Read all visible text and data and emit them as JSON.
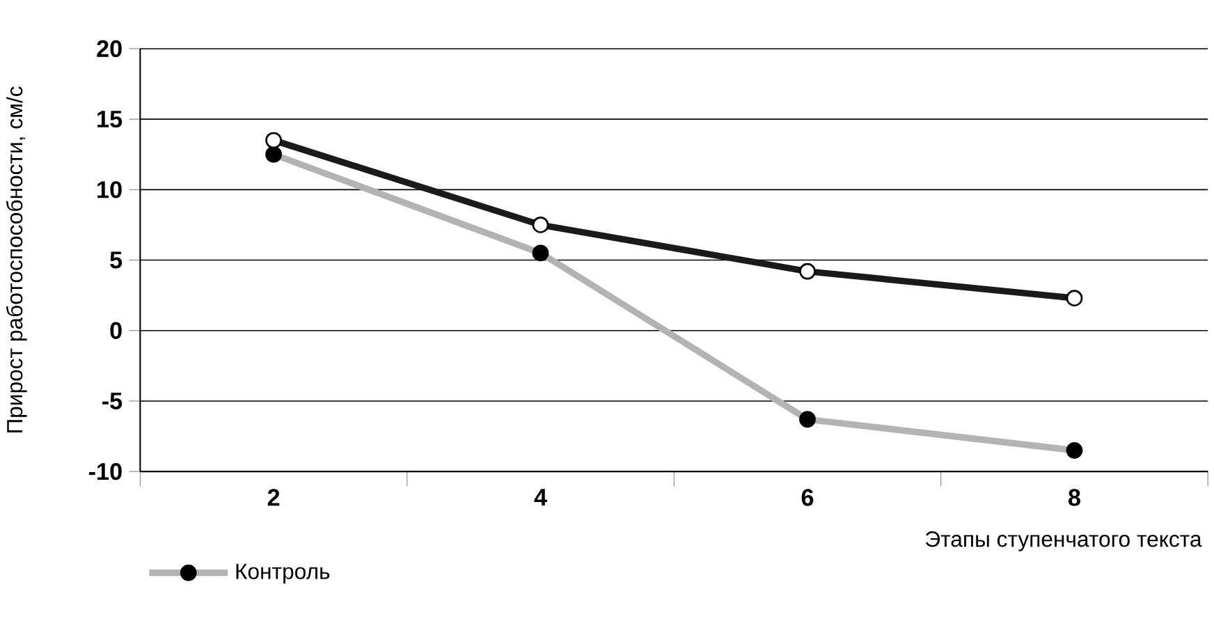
{
  "chart_data": {
    "type": "line",
    "ylabel": "Прирост работоспособности, см/с",
    "xlabel": "Этапы ступенчатого текста",
    "categories": [
      "2",
      "4",
      "6",
      "8"
    ],
    "ylim": [
      -10,
      20
    ],
    "yticks": [
      -10,
      -5,
      0,
      5,
      10,
      15,
      20
    ],
    "grid": "y",
    "legend": "bottom left",
    "marker": "circle",
    "series": [
      {
        "name": "Контроль",
        "color": "#b3b3b3",
        "values": [
          12.5,
          5.5,
          -6.3,
          -8.5
        ]
      },
      {
        "color": "#1a1a1a",
        "values": [
          13.5,
          7.5,
          4.2,
          2.3
        ]
      }
    ]
  }
}
